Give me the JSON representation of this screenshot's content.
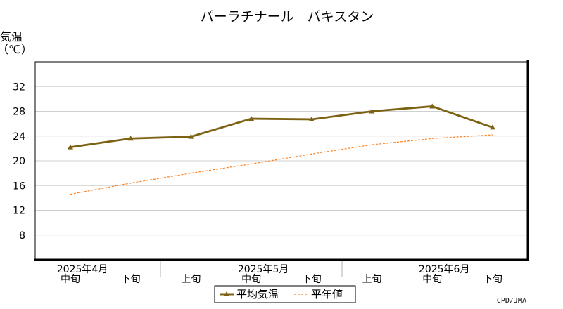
{
  "chart_data": {
    "type": "line",
    "title": "パーラチナール　パキスタン",
    "ylabel_line1": "気温",
    "ylabel_line2": "（℃）",
    "ylim": [
      4,
      36
    ],
    "yticks": [
      8,
      12,
      16,
      20,
      24,
      28,
      32
    ],
    "grid": true,
    "categories": [
      "中旬",
      "下旬",
      "上旬",
      "中旬",
      "下旬",
      "上旬",
      "中旬",
      "下旬"
    ],
    "month_labels": [
      {
        "label": "2025年4月",
        "index": 0
      },
      {
        "label": "2025年5月",
        "index": 3
      },
      {
        "label": "2025年6月",
        "index": 6
      }
    ],
    "series": [
      {
        "name": "平均気温",
        "color": "#7d6214",
        "style": "solid",
        "marker": "triangle",
        "values": [
          22.2,
          23.6,
          23.9,
          26.8,
          26.7,
          28.0,
          28.8,
          25.4
        ]
      },
      {
        "name": "平年値",
        "color": "#ff7f1a",
        "style": "dashed",
        "marker": "none",
        "values": [
          14.6,
          16.4,
          18.0,
          19.5,
          21.1,
          22.6,
          23.6,
          24.2
        ]
      }
    ],
    "legend_position": "bottom",
    "credit": "CPD/JMA"
  }
}
